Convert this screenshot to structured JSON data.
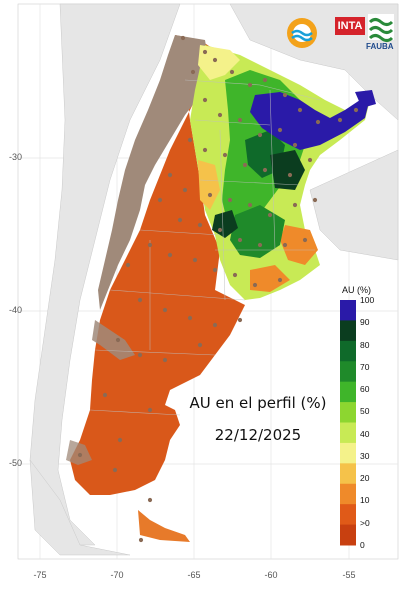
{
  "map": {
    "title": "AU en el perfil (%)",
    "date": "22/12/2025",
    "x_ticks": [
      "-75",
      "-70",
      "-65",
      "-60",
      "-55"
    ],
    "y_ticks": [
      "-30",
      "-40",
      "-50"
    ]
  },
  "legend": {
    "title": "AU (%)",
    "labels": [
      "100",
      "90",
      "80",
      "70",
      "60",
      "50",
      "40",
      "30",
      "20",
      "10",
      ">0",
      "0"
    ],
    "colors": [
      "#2a1aa8",
      "#0b3d1f",
      "#0f6a2a",
      "#1f8a2a",
      "#3fb52a",
      "#8dd630",
      "#c8ea55",
      "#f4f28a",
      "#f5c24a",
      "#ef8a2a",
      "#e05a18",
      "#c84010"
    ]
  },
  "logos": {
    "inta": "INTA",
    "fauba": "FAUBA"
  },
  "colors": {
    "basemap": "#dcdcdc",
    "dry_orange": "#d9581a",
    "arid_brown": "#a08a7a",
    "station_dot": "#8a6a55"
  }
}
